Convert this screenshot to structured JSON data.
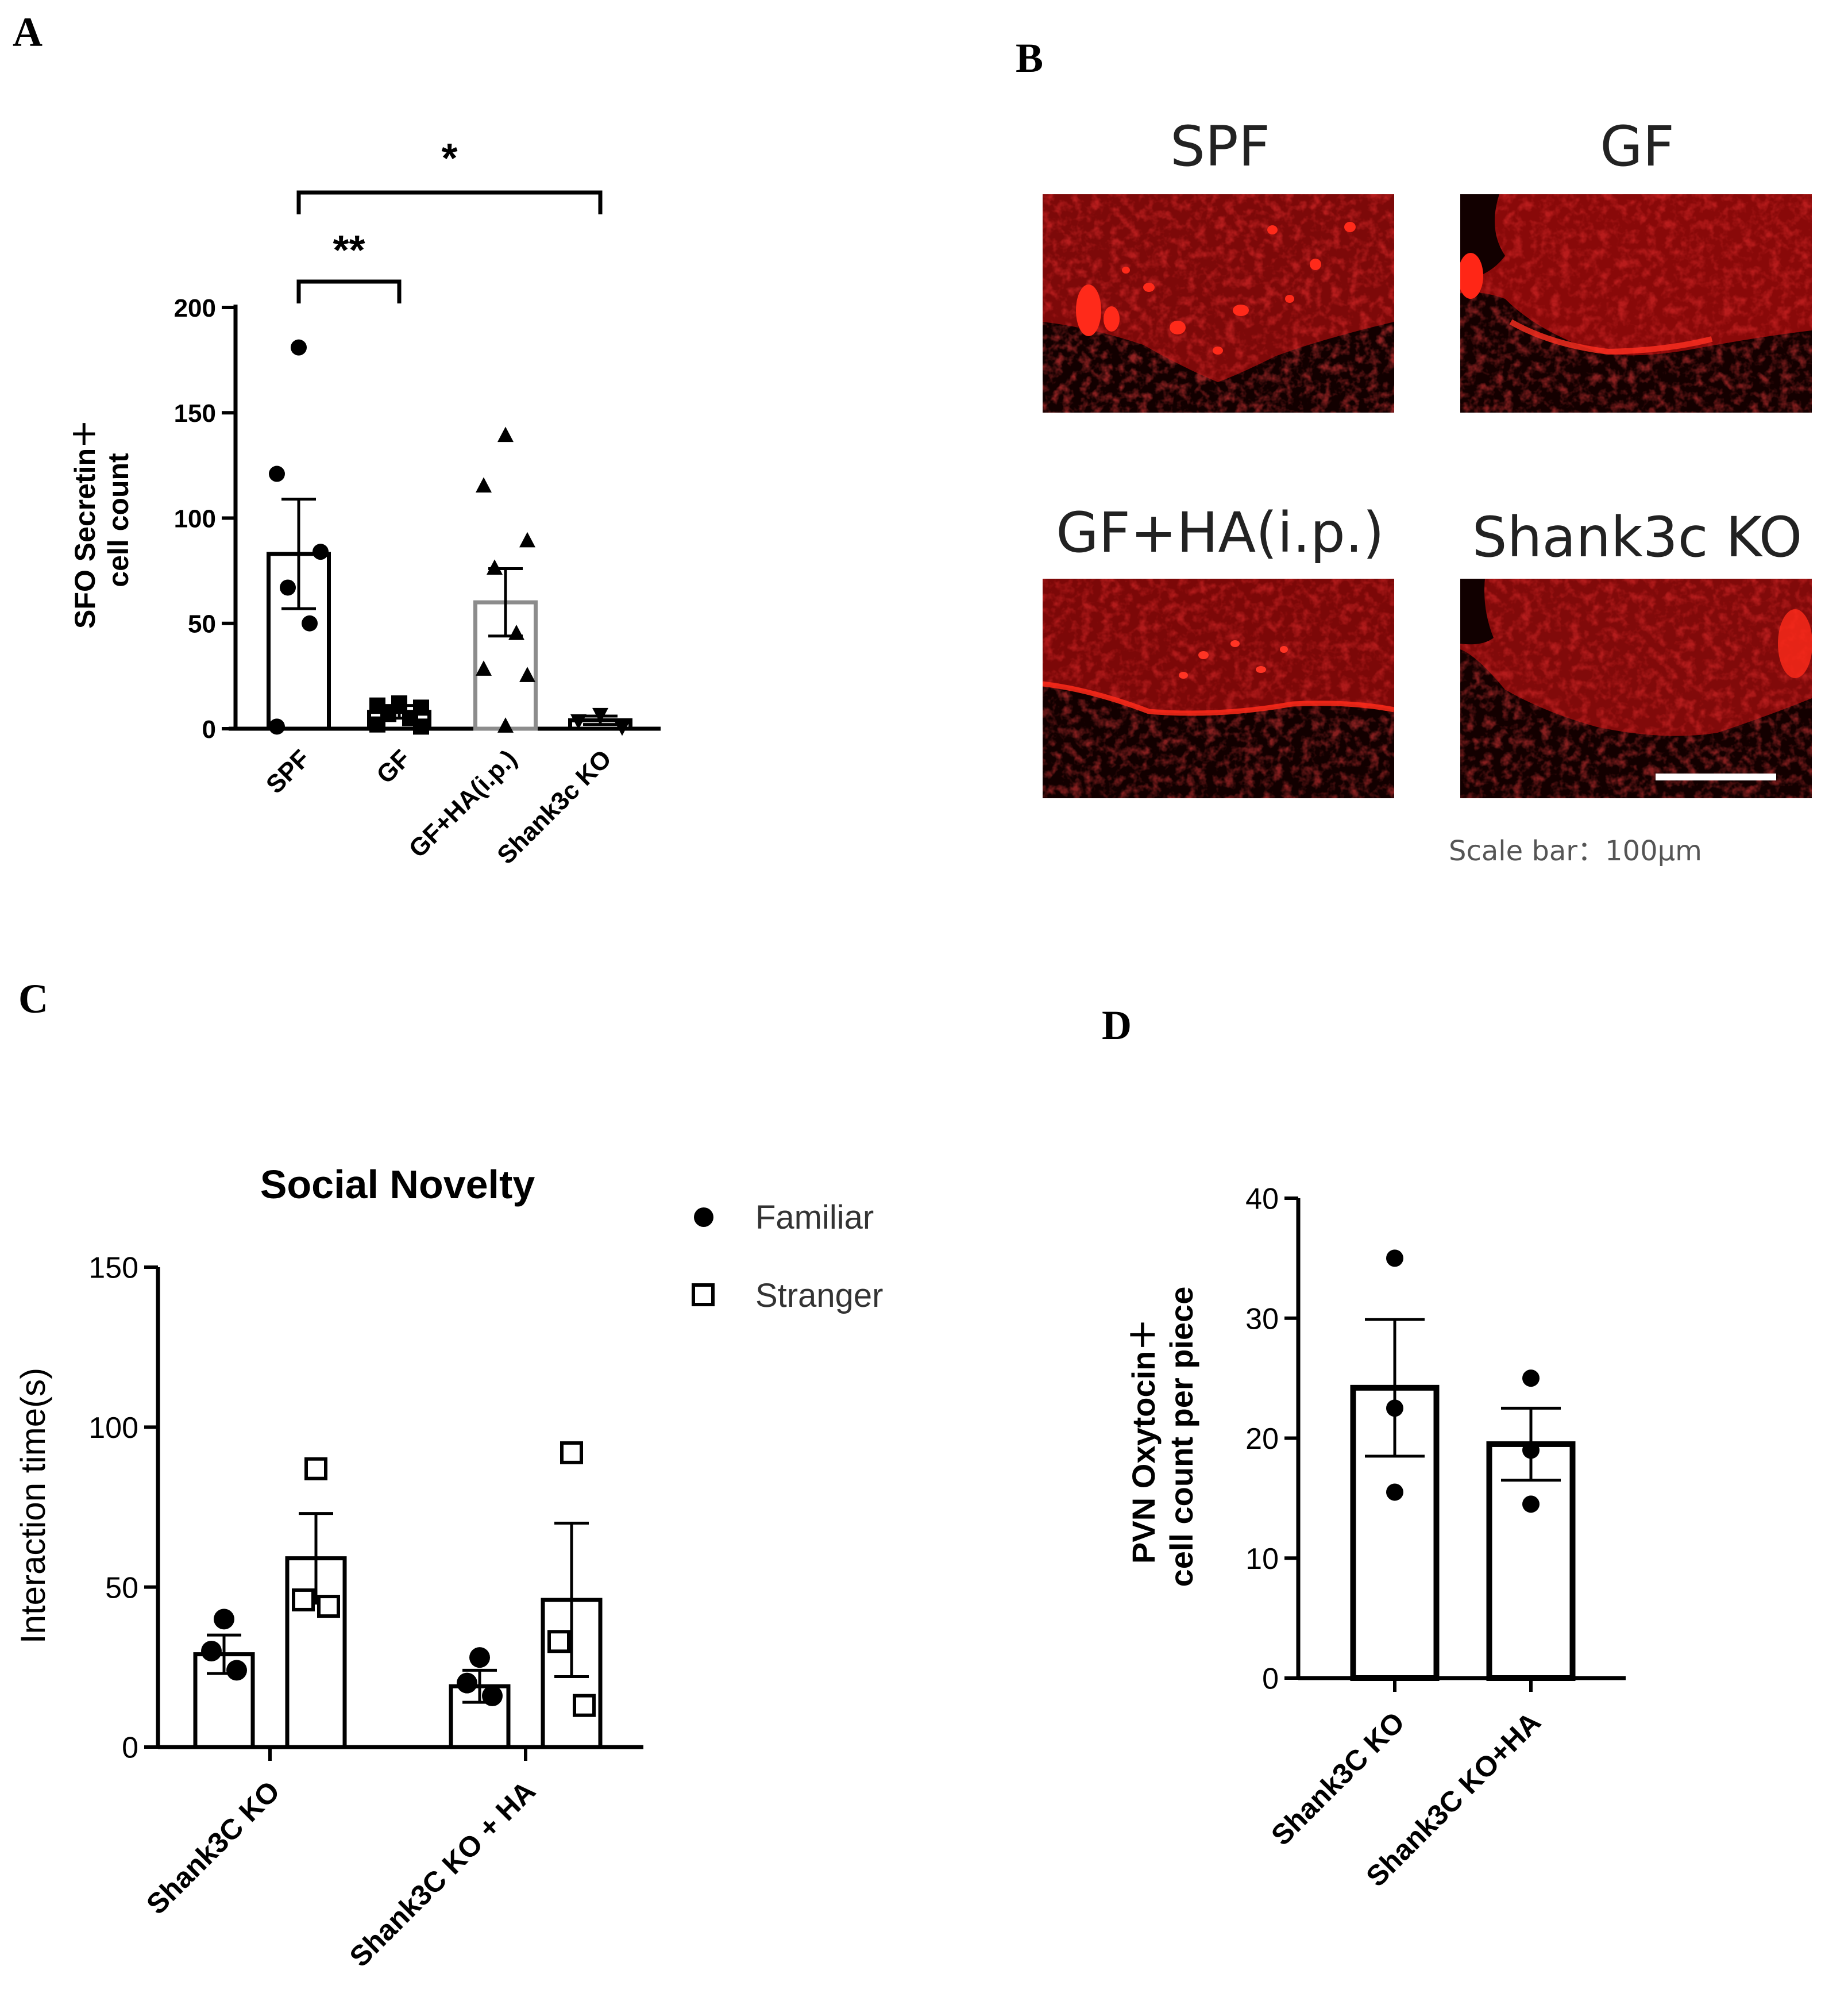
{
  "panels": {
    "a": {
      "letter": "A"
    },
    "b": {
      "letter": "B",
      "images": [
        {
          "label": "SPF"
        },
        {
          "label": "GF"
        },
        {
          "label": "GF+HA(i.p.)"
        },
        {
          "label": "Shank3c KO"
        }
      ],
      "scale_note": "Scale bar：100µm"
    },
    "c": {
      "letter": "C"
    },
    "d": {
      "letter": "D"
    }
  },
  "chart_data": [
    {
      "id": "A",
      "type": "bar",
      "ylabel": [
        "SFO Secretin＋",
        "cell count"
      ],
      "ylim": [
        0,
        200
      ],
      "yticks": [
        0,
        50,
        100,
        150,
        200
      ],
      "categories": [
        "SPF",
        "GF",
        "GF+HA(i.p.)",
        "Shank3c KO"
      ],
      "values": [
        83,
        8,
        60,
        4
      ],
      "sem": [
        26,
        3,
        16,
        2
      ],
      "points": [
        [
          181,
          121,
          84,
          67,
          50,
          1
        ],
        [
          12,
          11,
          10,
          7,
          5,
          2,
          1
        ],
        [
          139,
          115,
          89,
          76,
          45,
          28,
          25,
          1
        ],
        [
          7,
          4,
          1
        ]
      ],
      "markers": [
        "circle",
        "square",
        "triangle",
        "triangle-down"
      ],
      "bar_colors": [
        "#000000",
        "#000000",
        "#8c8c8c",
        "#000000"
      ],
      "significance": [
        {
          "from": 0,
          "to": 1,
          "label": "**"
        },
        {
          "from": 0,
          "to": 3,
          "label": "*"
        }
      ]
    },
    {
      "id": "C",
      "type": "bar",
      "title": "Social Novelty",
      "ylabel": "Interaction time(s)",
      "ylim": [
        0,
        150
      ],
      "yticks": [
        0,
        50,
        100,
        150
      ],
      "categories": [
        "Shank3C KO",
        "Shank3C KO + HA"
      ],
      "series": [
        {
          "name": "Familiar",
          "marker": "filled-circle",
          "values": [
            29,
            19
          ],
          "sem": [
            6,
            5
          ],
          "points": [
            [
              40,
              30,
              24
            ],
            [
              28,
              20,
              16
            ]
          ]
        },
        {
          "name": "Stranger",
          "marker": "open-square",
          "values": [
            59,
            46
          ],
          "sem": [
            14,
            24
          ],
          "points": [
            [
              87,
              46,
              44
            ],
            [
              92,
              33,
              13
            ]
          ]
        }
      ]
    },
    {
      "id": "D",
      "type": "bar",
      "ylabel": [
        "PVN Oxytocin＋",
        "cell count per piece"
      ],
      "ylim": [
        0,
        40
      ],
      "yticks": [
        0,
        10,
        20,
        30,
        40
      ],
      "categories": [
        "Shank3C KO",
        "Shank3C KO+HA"
      ],
      "values": [
        24.2,
        19.5
      ],
      "sem": [
        5.7,
        3.0
      ],
      "points": [
        [
          35,
          22.5,
          15.5
        ],
        [
          25,
          19,
          14.5
        ]
      ]
    }
  ]
}
